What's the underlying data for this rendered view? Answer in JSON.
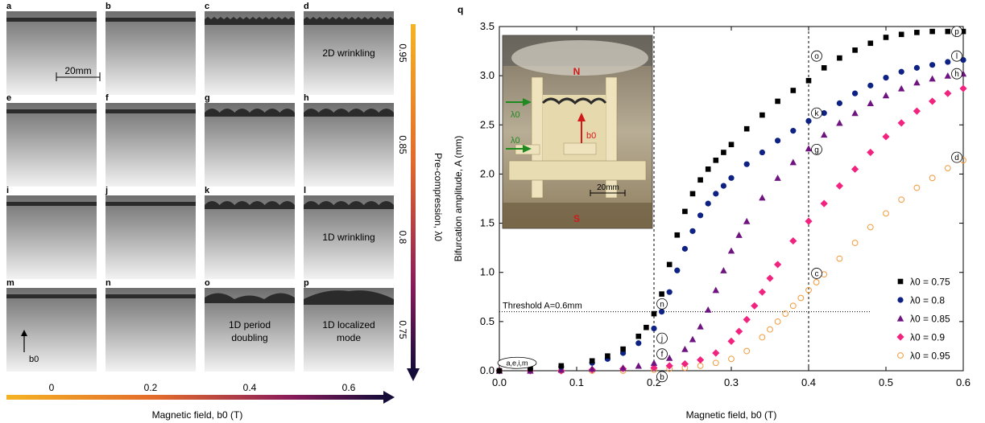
{
  "left_panel": {
    "panels": [
      {
        "letter": "a"
      },
      {
        "letter": "b"
      },
      {
        "letter": "c"
      },
      {
        "letter": "d",
        "text": "2D wrinkling"
      },
      {
        "letter": "e"
      },
      {
        "letter": "f"
      },
      {
        "letter": "g"
      },
      {
        "letter": "h"
      },
      {
        "letter": "i"
      },
      {
        "letter": "j"
      },
      {
        "letter": "k"
      },
      {
        "letter": "l",
        "text": "1D wrinkling"
      },
      {
        "letter": "m",
        "arrow_label": "b0"
      },
      {
        "letter": "n"
      },
      {
        "letter": "o",
        "text": "1D period doubling"
      },
      {
        "letter": "p",
        "text": "1D localized mode"
      }
    ],
    "scale_bar_label": "20mm",
    "row_labels": [
      "0.95",
      "0.85",
      "0.8",
      "0.75"
    ],
    "col_labels": [
      "0",
      "0.2",
      "0.4",
      "0.6"
    ],
    "x_axis_label": "Magnetic field, b0 (T)",
    "y_axis_label": "Pre-compression, λ0",
    "field_arrow_colors": [
      "#f5b324",
      "#e26a2c",
      "#8a1c5a",
      "#160c3a"
    ]
  },
  "inset": {
    "north_label": "N",
    "south_label": "S",
    "b0_label": "b0",
    "lambda_label_top": "λ0",
    "lambda_label_bottom": "λ0",
    "scale_label": "20mm"
  },
  "chart_data": {
    "type": "scatter",
    "panel_letter": "q",
    "xlabel": "Magnetic field, b0 (T)",
    "ylabel": "Bifurcation amplitude, A (mm)",
    "xlim": [
      0,
      0.6
    ],
    "ylim": [
      0,
      3.5
    ],
    "xticks": [
      "0.0",
      "0.1",
      "0.2",
      "0.3",
      "0.4",
      "0.5",
      "0.6"
    ],
    "yticks": [
      "0.0",
      "0.5",
      "1.0",
      "1.5",
      "2.0",
      "2.5",
      "3.0",
      "3.5"
    ],
    "threshold_label": "Threshold A=0.6mm",
    "threshold_value": 0.6,
    "vertical_lines": [
      0.2,
      0.4
    ],
    "legend_position": "lower-right",
    "series": [
      {
        "name": "λ0 = 0.75",
        "marker": "square",
        "color": "#000000",
        "x": [
          0,
          0.04,
          0.08,
          0.12,
          0.14,
          0.16,
          0.18,
          0.19,
          0.2,
          0.21,
          0.22,
          0.23,
          0.24,
          0.25,
          0.26,
          0.27,
          0.28,
          0.29,
          0.3,
          0.32,
          0.34,
          0.36,
          0.38,
          0.4,
          0.42,
          0.44,
          0.46,
          0.48,
          0.5,
          0.52,
          0.54,
          0.56,
          0.58,
          0.6
        ],
        "y": [
          0,
          0.02,
          0.05,
          0.1,
          0.15,
          0.22,
          0.35,
          0.44,
          0.58,
          0.78,
          1.08,
          1.38,
          1.62,
          1.8,
          1.94,
          2.05,
          2.14,
          2.22,
          2.3,
          2.46,
          2.6,
          2.74,
          2.85,
          2.95,
          3.08,
          3.18,
          3.26,
          3.33,
          3.39,
          3.42,
          3.44,
          3.45,
          3.45,
          3.45
        ]
      },
      {
        "name": "λ0 = 0.8",
        "marker": "circle",
        "color": "#0d2283",
        "x": [
          0,
          0.04,
          0.08,
          0.12,
          0.14,
          0.16,
          0.18,
          0.2,
          0.21,
          0.22,
          0.23,
          0.24,
          0.25,
          0.26,
          0.27,
          0.28,
          0.29,
          0.3,
          0.32,
          0.34,
          0.36,
          0.38,
          0.4,
          0.42,
          0.44,
          0.46,
          0.48,
          0.5,
          0.52,
          0.54,
          0.56,
          0.58,
          0.6
        ],
        "y": [
          0,
          0.02,
          0.04,
          0.08,
          0.12,
          0.18,
          0.28,
          0.43,
          0.6,
          0.8,
          1.02,
          1.24,
          1.42,
          1.58,
          1.7,
          1.8,
          1.88,
          1.96,
          2.1,
          2.22,
          2.34,
          2.44,
          2.54,
          2.62,
          2.72,
          2.82,
          2.9,
          2.98,
          3.04,
          3.08,
          3.11,
          3.14,
          3.16
        ]
      },
      {
        "name": "λ0 = 0.85",
        "marker": "triangle",
        "color": "#6e1380",
        "x": [
          0,
          0.04,
          0.08,
          0.12,
          0.16,
          0.18,
          0.2,
          0.22,
          0.24,
          0.25,
          0.26,
          0.27,
          0.28,
          0.29,
          0.3,
          0.31,
          0.32,
          0.34,
          0.36,
          0.38,
          0.4,
          0.42,
          0.44,
          0.46,
          0.48,
          0.5,
          0.52,
          0.54,
          0.56,
          0.58,
          0.6
        ],
        "y": [
          0,
          0,
          0.01,
          0.02,
          0.03,
          0.05,
          0.08,
          0.13,
          0.22,
          0.32,
          0.45,
          0.62,
          0.82,
          1.02,
          1.22,
          1.38,
          1.52,
          1.76,
          1.96,
          2.12,
          2.26,
          2.4,
          2.52,
          2.62,
          2.72,
          2.8,
          2.87,
          2.93,
          2.97,
          3.0,
          3.02
        ]
      },
      {
        "name": "λ0 = 0.9",
        "marker": "diamond",
        "color": "#f2237f",
        "x": [
          0,
          0.04,
          0.08,
          0.12,
          0.16,
          0.2,
          0.22,
          0.24,
          0.26,
          0.28,
          0.3,
          0.31,
          0.32,
          0.33,
          0.34,
          0.35,
          0.36,
          0.38,
          0.4,
          0.42,
          0.44,
          0.46,
          0.48,
          0.5,
          0.52,
          0.54,
          0.56,
          0.58,
          0.6
        ],
        "y": [
          0,
          0,
          0,
          0.01,
          0.02,
          0.03,
          0.05,
          0.07,
          0.11,
          0.18,
          0.3,
          0.4,
          0.52,
          0.66,
          0.8,
          0.94,
          1.08,
          1.32,
          1.52,
          1.7,
          1.88,
          2.05,
          2.22,
          2.38,
          2.52,
          2.64,
          2.74,
          2.82,
          2.87
        ]
      },
      {
        "name": "λ0 = 0.95",
        "marker": "open-circle",
        "color": "#f39a3c",
        "x": [
          0,
          0.04,
          0.08,
          0.12,
          0.16,
          0.2,
          0.22,
          0.24,
          0.26,
          0.28,
          0.3,
          0.32,
          0.34,
          0.35,
          0.36,
          0.37,
          0.38,
          0.39,
          0.4,
          0.41,
          0.42,
          0.44,
          0.46,
          0.48,
          0.5,
          0.52,
          0.54,
          0.56,
          0.58,
          0.6
        ],
        "y": [
          0,
          0,
          0,
          0,
          0,
          0.01,
          0.02,
          0.03,
          0.05,
          0.08,
          0.12,
          0.2,
          0.34,
          0.42,
          0.5,
          0.58,
          0.66,
          0.74,
          0.82,
          0.9,
          0.98,
          1.14,
          1.3,
          1.46,
          1.6,
          1.74,
          1.86,
          1.96,
          2.06,
          2.14
        ]
      }
    ],
    "point_labels": [
      {
        "text": "p",
        "x": 0.6,
        "y": 3.45
      },
      {
        "text": "l",
        "x": 0.6,
        "y": 3.2
      },
      {
        "text": "h",
        "x": 0.6,
        "y": 3.02
      },
      {
        "text": "o",
        "x": 0.4,
        "y": 3.2
      },
      {
        "text": "k",
        "x": 0.4,
        "y": 2.62
      },
      {
        "text": "g",
        "x": 0.4,
        "y": 2.25
      },
      {
        "text": "d",
        "x": 0.6,
        "y": 2.17
      },
      {
        "text": "c",
        "x": 0.4,
        "y": 0.99
      },
      {
        "text": "n",
        "x": 0.2,
        "y": 0.68
      },
      {
        "text": "j",
        "x": 0.2,
        "y": 0.33
      },
      {
        "text": "f",
        "x": 0.2,
        "y": 0.17
      },
      {
        "text": "b",
        "x": 0.2,
        "y": -0.06
      },
      {
        "text": "a,e,i,m",
        "x": 0.0,
        "y": 0.08
      }
    ]
  }
}
